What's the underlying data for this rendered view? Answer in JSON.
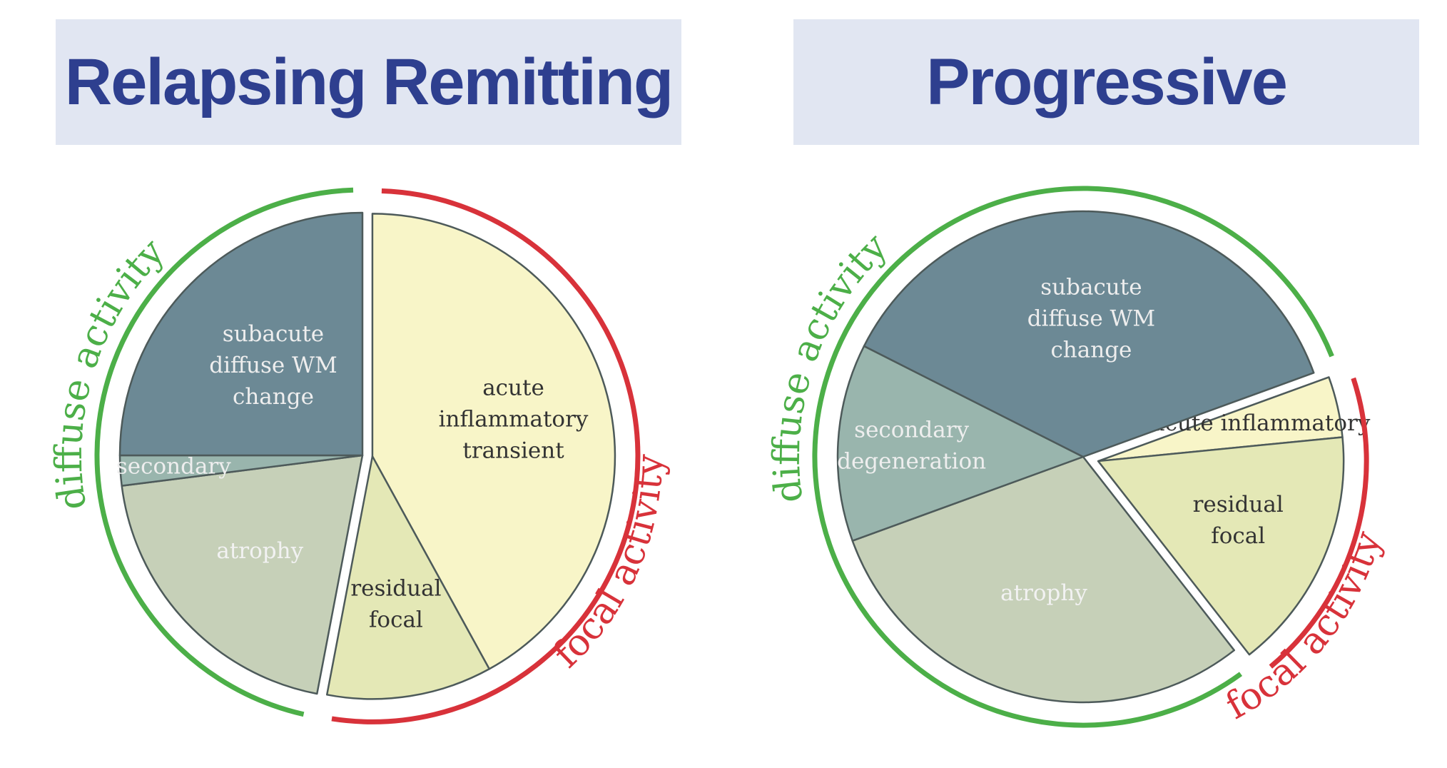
{
  "chart_data": [
    {
      "type": "pie",
      "title": "Relapsing Remitting",
      "slices": [
        {
          "label": "acute inflammatory transient",
          "lines": [
            "acute",
            "inflammatory",
            "transient"
          ],
          "value": 42,
          "color": "#f8f5c8",
          "text_color": "#333333",
          "group": "focal",
          "exploded": true
        },
        {
          "label": "residual focal",
          "lines": [
            "residual",
            "focal"
          ],
          "value": 11,
          "color": "#e4e8b6",
          "text_color": "#333333",
          "group": "focal",
          "exploded": true
        },
        {
          "label": "atrophy",
          "lines": [
            "atrophy"
          ],
          "value": 20,
          "color": "#c6d0b8",
          "text_color": "#f2f2f2",
          "group": "diffuse",
          "exploded": false
        },
        {
          "label": "secondary",
          "lines": [
            "secondary"
          ],
          "value": 2,
          "color": "#99b5ad",
          "text_color": "#eeeeee",
          "group": "diffuse",
          "exploded": false
        },
        {
          "label": "subacute diffuse WM change",
          "lines": [
            "subacute",
            "diffuse WM",
            "change"
          ],
          "value": 25,
          "color": "#6c8995",
          "text_color": "#eeeeee",
          "group": "diffuse",
          "exploded": false
        }
      ],
      "arcs": [
        {
          "label": "diffuse activity",
          "group": "diffuse",
          "color": "#4caf48"
        },
        {
          "label": "focal activity",
          "group": "focal",
          "color": "#d8323a"
        }
      ]
    },
    {
      "type": "pie",
      "title": "Progressive",
      "slices": [
        {
          "label": "acute inflammatory",
          "lines": [
            "acute inflammatory"
          ],
          "value": 4,
          "color": "#f8f5c8",
          "text_color": "#333333",
          "group": "focal",
          "exploded": true
        },
        {
          "label": "residual focal",
          "lines": [
            "residual",
            "focal"
          ],
          "value": 16,
          "color": "#e4e8b6",
          "text_color": "#333333",
          "group": "focal",
          "exploded": true
        },
        {
          "label": "atrophy",
          "lines": [
            "atrophy"
          ],
          "value": 30,
          "color": "#c6d0b8",
          "text_color": "#f2f2f2",
          "group": "diffuse",
          "exploded": false
        },
        {
          "label": "secondary degeneration",
          "lines": [
            "secondary",
            "degeneration"
          ],
          "value": 13,
          "color": "#99b5ad",
          "text_color": "#eeeeee",
          "group": "diffuse",
          "exploded": false
        },
        {
          "label": "subacute diffuse WM change",
          "lines": [
            "subacute",
            "diffuse WM",
            "change"
          ],
          "value": 37,
          "color": "#6c8995",
          "text_color": "#eeeeee",
          "group": "diffuse",
          "exploded": false
        }
      ],
      "arcs": [
        {
          "label": "diffuse activity",
          "group": "diffuse",
          "color": "#4caf48"
        },
        {
          "label": "focal activity",
          "group": "focal",
          "color": "#d8323a"
        }
      ]
    }
  ]
}
